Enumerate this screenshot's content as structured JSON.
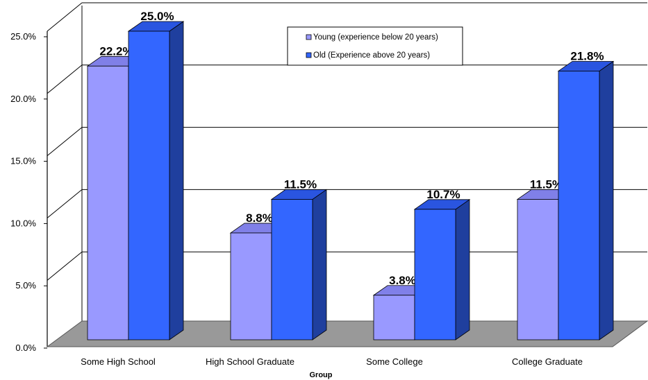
{
  "chart_data": {
    "type": "bar",
    "title": "",
    "xlabel": "Group",
    "ylabel": "",
    "categories": [
      "Some High School",
      "High School Graduate",
      "Some College",
      "College Graduate"
    ],
    "series": [
      {
        "name": "Young (experience below 20 years)",
        "values": [
          22.2,
          8.8,
          3.8,
          11.5
        ],
        "labels": [
          "22.2%",
          "8.8%",
          "3.8%",
          "11.5%"
        ]
      },
      {
        "name": "Old (Experience above 20 years)",
        "values": [
          25.0,
          11.5,
          10.7,
          21.8
        ],
        "labels": [
          "25.0%",
          "11.5%",
          "10.7%",
          "21.8%"
        ]
      }
    ],
    "ylim": [
      0,
      25
    ],
    "yticks": [
      "0.0%",
      "5.0%",
      "10.0%",
      "15.0%",
      "20.0%",
      "25.0%"
    ],
    "grid": true,
    "legend_position": "top-center",
    "colors": {
      "young_front": "#9999ff",
      "young_top": "#8080e8",
      "young_side": "#6b6bd6",
      "old_front": "#3366ff",
      "old_top": "#2a55e0",
      "old_side": "#1f3f9e",
      "floor": "#999999"
    }
  }
}
